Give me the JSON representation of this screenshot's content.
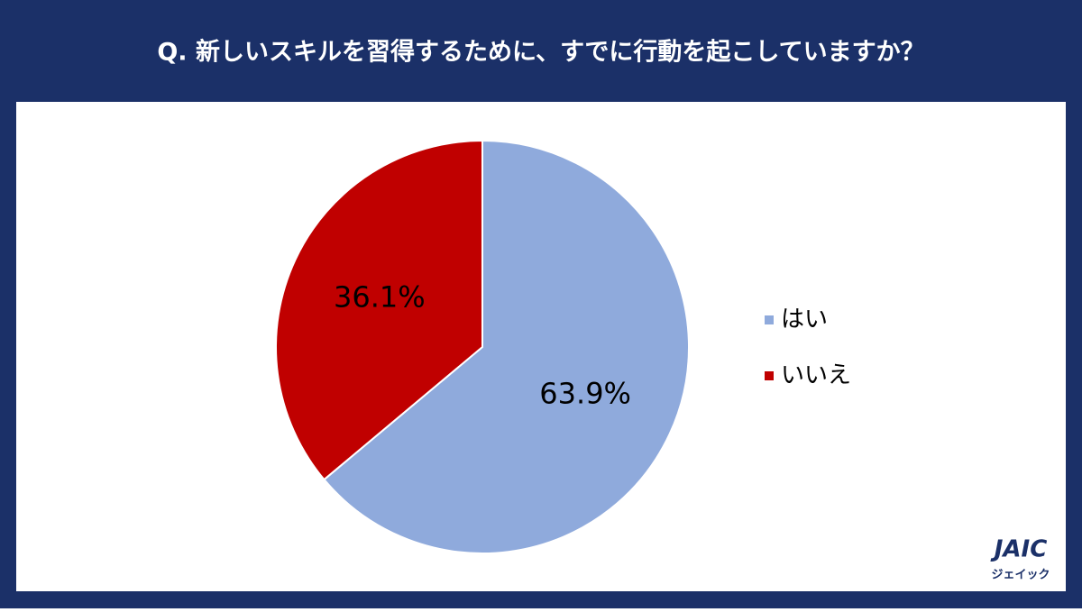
{
  "chart_data": {
    "type": "pie",
    "title": "Q. 新しいスキルを習得するために、すでに行動を起こしていますか？",
    "categories": [
      "はい",
      "いいえ"
    ],
    "values": [
      63.9,
      36.1
    ],
    "value_labels": [
      "63.9%",
      "36.1%"
    ],
    "colors": [
      "#8faadc",
      "#c00000"
    ],
    "legend": "right"
  },
  "logo": {
    "name": "JAIC",
    "subtitle": "ジェイック"
  }
}
